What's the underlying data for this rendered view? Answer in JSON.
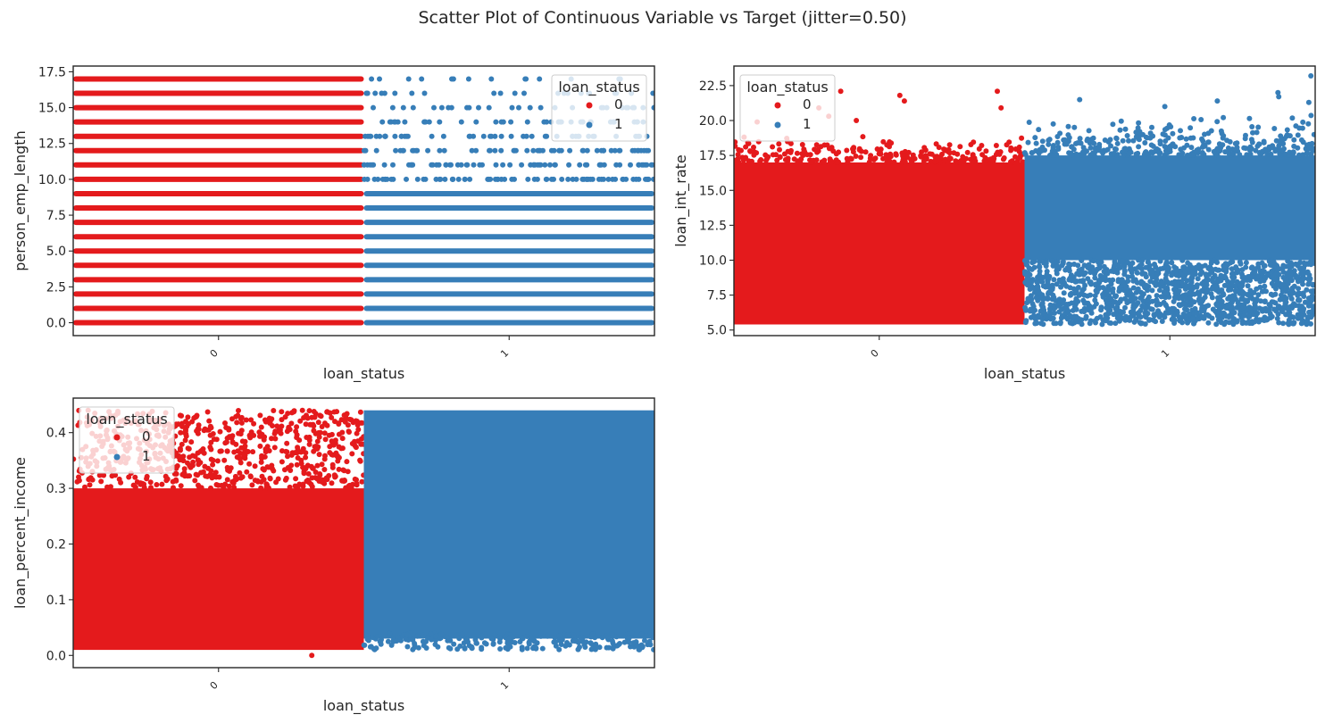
{
  "figure": {
    "title": "Scatter Plot of Continuous Variable vs Target (jitter=0.50)"
  },
  "colors": {
    "class_0": "#e41a1c",
    "class_1": "#377eb8",
    "axes_text": "#262626",
    "background": "#ffffff"
  },
  "chart_data": [
    {
      "type": "scatter",
      "title": "",
      "xlabel": "loan_status",
      "ylabel": "person_emp_length",
      "categories": [
        "0",
        "1"
      ],
      "xlim": [
        -0.5,
        1.5
      ],
      "ylim": [
        -0.9,
        17.9
      ],
      "yticks": [
        "0.0",
        "2.5",
        "5.0",
        "7.5",
        "10.0",
        "12.5",
        "15.0",
        "17.5"
      ],
      "legend": {
        "title": "loan_status",
        "labels": [
          "0",
          "1"
        ],
        "position": "upper right"
      },
      "grid": false,
      "series": [
        {
          "name": "0",
          "x_center": 0,
          "jitter": 0.5,
          "y_values": [
            0,
            1,
            2,
            3,
            4,
            5,
            6,
            7,
            8,
            9,
            10,
            11,
            12,
            13,
            14,
            15,
            16,
            17
          ],
          "density": "very dense; integer years 0–17, all rows filled"
        },
        {
          "name": "1",
          "x_center": 1,
          "jitter": 0.5,
          "y_values": [
            0,
            1,
            2,
            3,
            4,
            5,
            6,
            7,
            8,
            9,
            10,
            11,
            12,
            13,
            14,
            15,
            16,
            17
          ],
          "density": "dense for 0–9, increasingly sparse above 10"
        }
      ]
    },
    {
      "type": "scatter",
      "title": "",
      "xlabel": "loan_status",
      "ylabel": "loan_int_rate",
      "categories": [
        "0",
        "1"
      ],
      "xlim": [
        -0.5,
        1.5
      ],
      "ylim": [
        4.6,
        23.9
      ],
      "yticks": [
        "5.0",
        "7.5",
        "10.0",
        "12.5",
        "15.0",
        "17.5",
        "20.0",
        "22.5"
      ],
      "legend": {
        "title": "loan_status",
        "labels": [
          "0",
          "1"
        ],
        "position": "upper left"
      },
      "grid": false,
      "series": [
        {
          "name": "0",
          "x_center": 0,
          "jitter": 0.5,
          "y_range": [
            5.4,
            22.1
          ],
          "dense_range": [
            5.4,
            17.0
          ],
          "outliers": [
            22.1,
            22.1,
            21.8,
            21.4,
            20.9,
            20.9,
            20.3,
            20.0,
            19.9
          ]
        },
        {
          "name": "1",
          "x_center": 1,
          "jitter": 0.5,
          "y_range": [
            5.4,
            23.2
          ],
          "dense_range": [
            10.0,
            17.5
          ],
          "sparser_band": [
            5.4,
            10.0
          ],
          "outliers": [
            23.2,
            22.0,
            21.7,
            21.5,
            21.4,
            21.3,
            21.0
          ]
        }
      ]
    },
    {
      "type": "scatter",
      "title": "",
      "xlabel": "loan_status",
      "ylabel": "loan_percent_income",
      "categories": [
        "0",
        "1"
      ],
      "xlim": [
        -0.5,
        1.5
      ],
      "ylim": [
        -0.022,
        0.462
      ],
      "yticks": [
        "0.0",
        "0.1",
        "0.2",
        "0.3",
        "0.4"
      ],
      "legend": {
        "title": "loan_status",
        "labels": [
          "0",
          "1"
        ],
        "position": "upper left"
      },
      "grid": false,
      "series": [
        {
          "name": "0",
          "x_center": 0,
          "jitter": 0.5,
          "y_range": [
            0.0,
            0.44
          ],
          "dense_range": [
            0.01,
            0.3
          ],
          "outliers": [
            0.0
          ]
        },
        {
          "name": "1",
          "x_center": 1,
          "jitter": 0.5,
          "y_range": [
            0.01,
            0.44
          ],
          "dense_range": [
            0.03,
            0.44
          ]
        }
      ]
    }
  ]
}
